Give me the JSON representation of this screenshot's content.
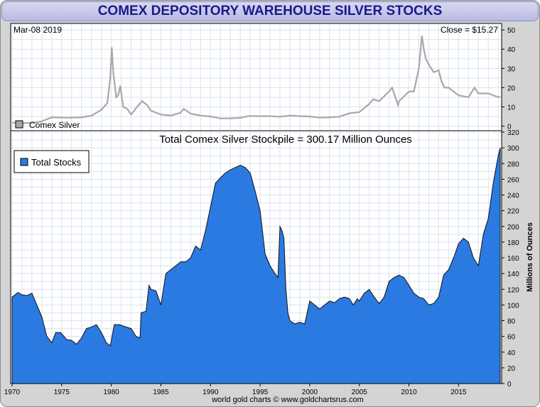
{
  "title": "COMEX DEPOSITORY WAREHOUSE SILVER STOCKS",
  "date_label": "Mar-08  2019",
  "close_label": "Close = $15.27",
  "footer": "world gold charts © www.goldchartsrus.com",
  "colors": {
    "title_text": "#1a1a8c",
    "price_line": "#a8a8a8",
    "stocks_fill": "#2a7ae2",
    "stocks_outline": "#111111",
    "grid": "#d9e3ef"
  },
  "chart_data": [
    {
      "type": "line",
      "legend": [
        "Comex Silver"
      ],
      "legend_position": "bottom-left",
      "grid": true,
      "ylim": [
        -2,
        53
      ],
      "yticks": [
        0,
        10,
        20,
        30,
        40,
        50
      ],
      "xlim": [
        1970,
        2019.2
      ],
      "series": [
        {
          "name": "Comex Silver",
          "x": [
            1970,
            1971,
            1972,
            1973,
            1974,
            1975,
            1976,
            1977,
            1978,
            1979,
            1979.6,
            1979.9,
            1980.05,
            1980.2,
            1980.5,
            1980.7,
            1980.9,
            1981.2,
            1981.6,
            1982,
            1982.6,
            1983.1,
            1983.6,
            1984,
            1985,
            1986,
            1987,
            1987.3,
            1988,
            1989,
            1990,
            1991,
            1992,
            1993,
            1993.9,
            1994.5,
            1995,
            1996,
            1997,
            1998,
            1999,
            2000,
            2001,
            2002,
            2003,
            2004,
            2005,
            2006,
            2006.4,
            2007,
            2008,
            2008.3,
            2008.9,
            2009,
            2010,
            2010.5,
            2011,
            2011.3,
            2011.5,
            2011.7,
            2012,
            2012.5,
            2013,
            2013.3,
            2013.6,
            2014,
            2015,
            2016,
            2016.6,
            2017,
            2018,
            2019,
            2019.2
          ],
          "y": [
            1.8,
            1.5,
            1.7,
            2.5,
            4.6,
            4.4,
            4.4,
            4.6,
            5.4,
            8.5,
            12,
            25,
            41,
            28,
            15,
            16,
            21,
            10,
            9,
            6,
            10,
            13,
            11,
            8,
            6,
            5.5,
            7,
            9,
            6.5,
            5.5,
            5,
            4,
            4,
            4.3,
            5.3,
            5.2,
            5.2,
            5.2,
            4.9,
            5.5,
            5.2,
            5,
            4.4,
            4.6,
            4.9,
            6.7,
            7.3,
            11.5,
            14,
            13,
            18,
            20,
            11,
            13,
            18,
            18,
            30,
            47,
            40,
            35,
            32,
            28,
            29,
            23,
            20,
            20,
            16,
            15,
            20,
            17,
            17,
            15,
            15.3
          ]
        }
      ]
    },
    {
      "type": "area",
      "title": "Total Comex Silver Stockpile = 300.17 Million Ounces",
      "ylabel": "Millions of Ounces",
      "legend": [
        "Total Stocks"
      ],
      "legend_position": "top-left",
      "grid": true,
      "ylim": [
        0,
        320
      ],
      "yticks": [
        0,
        20,
        40,
        60,
        80,
        100,
        120,
        140,
        160,
        180,
        200,
        220,
        240,
        260,
        280,
        300,
        320
      ],
      "xlim": [
        1970,
        2019.2
      ],
      "xticks": [
        "1970",
        "1975",
        "1980",
        "1985",
        "1990",
        "1995",
        "2000",
        "2005",
        "2010",
        "2015"
      ],
      "series": [
        {
          "name": "Total Stocks",
          "x": [
            1970,
            1970.6,
            1971,
            1971.5,
            1972,
            1972.5,
            1973,
            1973.5,
            1974,
            1974.4,
            1974.9,
            1975.5,
            1976,
            1976.5,
            1977,
            1977.5,
            1978,
            1978.5,
            1979,
            1979.5,
            1979.9,
            1980.3,
            1980.8,
            1981.5,
            1982,
            1982.5,
            1982.9,
            1983,
            1983.5,
            1983.8,
            1984,
            1984.5,
            1985,
            1985.5,
            1986,
            1986.5,
            1987,
            1987.5,
            1988,
            1988.5,
            1989,
            1989.5,
            1990,
            1990.5,
            1991,
            1991.5,
            1992,
            1992.5,
            1993,
            1993.5,
            1994,
            1994.5,
            1994.8,
            1995,
            1995.5,
            1996,
            1996.5,
            1996.8,
            1997,
            1997.2,
            1997.4,
            1997.6,
            1997.8,
            1998,
            1998.5,
            1999,
            1999.5,
            2000,
            2000.5,
            2001,
            2001.5,
            2002,
            2002.5,
            2003,
            2003.5,
            2004,
            2004.4,
            2004.8,
            2005,
            2005.5,
            2006,
            2006.4,
            2006.8,
            2007,
            2007.5,
            2008,
            2008.5,
            2009,
            2009.5,
            2010,
            2010.5,
            2011,
            2011.5,
            2012,
            2012.5,
            2013,
            2013.5,
            2014,
            2014.5,
            2015,
            2015.5,
            2016,
            2016.5,
            2017,
            2017.5,
            2018,
            2018.5,
            2019,
            2019.2
          ],
          "y": [
            110,
            116,
            113,
            112,
            115,
            100,
            85,
            60,
            52,
            65,
            65,
            56,
            55,
            50,
            58,
            70,
            72,
            75,
            65,
            52,
            48,
            75,
            75,
            72,
            70,
            60,
            58,
            90,
            92,
            125,
            120,
            118,
            100,
            140,
            145,
            150,
            155,
            155,
            160,
            175,
            170,
            195,
            225,
            255,
            262,
            268,
            272,
            275,
            278,
            275,
            268,
            245,
            230,
            220,
            165,
            150,
            140,
            135,
            200,
            195,
            185,
            120,
            90,
            80,
            76,
            78,
            76,
            105,
            100,
            95,
            100,
            105,
            103,
            108,
            110,
            108,
            100,
            108,
            105,
            115,
            120,
            112,
            105,
            102,
            110,
            130,
            135,
            138,
            135,
            125,
            115,
            110,
            108,
            100,
            102,
            110,
            138,
            145,
            160,
            178,
            185,
            180,
            160,
            150,
            190,
            210,
            255,
            290,
            300
          ]
        }
      ]
    }
  ]
}
